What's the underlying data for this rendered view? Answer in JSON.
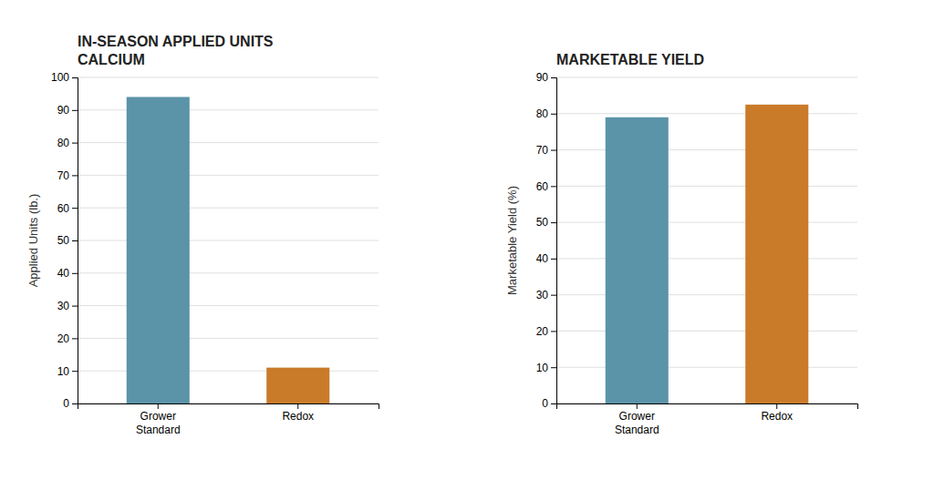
{
  "chart_data": [
    {
      "type": "bar",
      "title": "IN-SEASON APPLIED UNITS\nCALCIUM",
      "categories": [
        "Grower\nStandard",
        "Redox"
      ],
      "values": [
        94,
        11
      ],
      "colors": [
        "#5b93a8",
        "#c97b2a"
      ],
      "ylabel": "Applied Units (lb.)",
      "ylim": [
        0,
        100
      ],
      "yticks": [
        0,
        10,
        20,
        30,
        40,
        50,
        60,
        70,
        80,
        90,
        100
      ],
      "grid": true
    },
    {
      "type": "bar",
      "title": "MARKETABLE YIELD",
      "categories": [
        "Grower\nStandard",
        "Redox"
      ],
      "values": [
        79,
        82.5
      ],
      "colors": [
        "#5b93a8",
        "#c97b2a"
      ],
      "ylabel": "Marketable Yield (%)",
      "ylim": [
        0,
        90
      ],
      "yticks": [
        0,
        10,
        20,
        30,
        40,
        50,
        60,
        70,
        80,
        90
      ],
      "grid": true
    }
  ]
}
